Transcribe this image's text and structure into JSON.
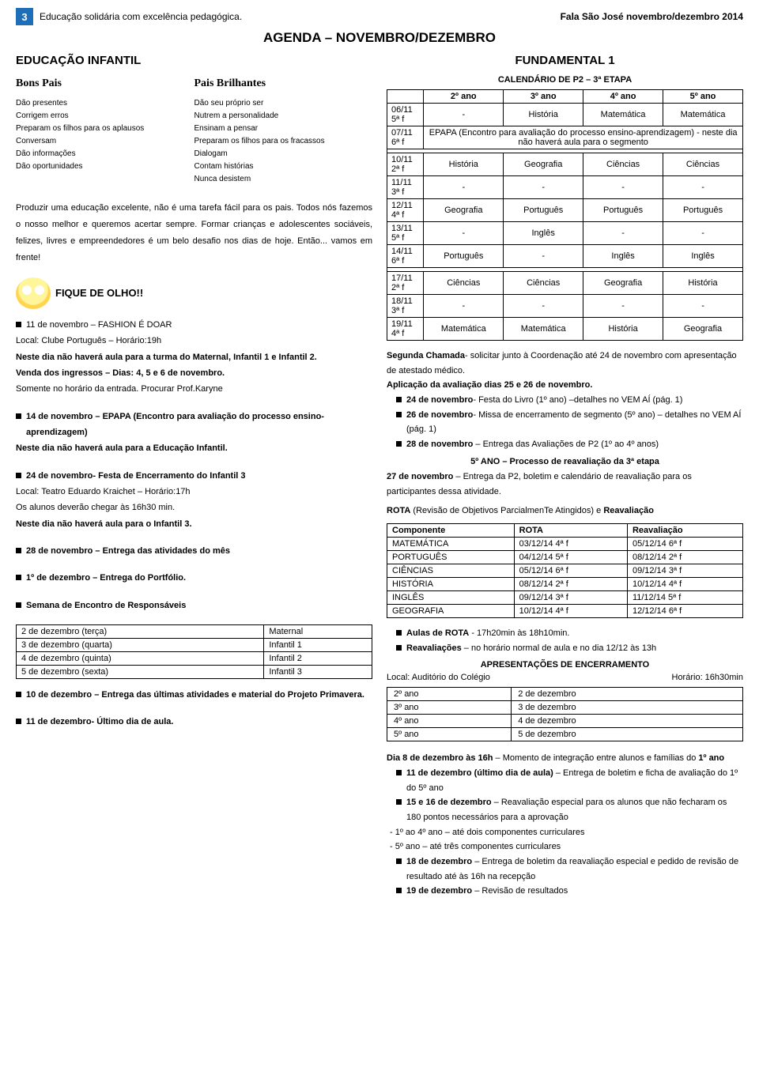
{
  "header": {
    "pageNum": "3",
    "left": "Educação solidária com excelência pedagógica.",
    "right": "Fala São José novembro/dezembro 2014",
    "agenda": "AGENDA – NOVEMBRO/DEZEMBRO"
  },
  "left": {
    "title": "EDUCAÇÃO INFANTIL",
    "compare": {
      "headA": "Bons Pais",
      "headB": "Pais Brilhantes",
      "a": [
        "Dão presentes",
        "Corrigem erros",
        "Preparam os filhos para os aplausos",
        "Conversam",
        "Dão informações",
        "Dão oportunidades"
      ],
      "b": [
        "Dão seu próprio ser",
        "Nutrem a personalidade",
        "Ensinam a pensar",
        "Preparam os filhos para os fracassos",
        "Dialogam",
        "Contam histórias",
        "Nunca desistem"
      ]
    },
    "body": "Produzir uma educação excelente, não é uma tarefa fácil para os pais. Todos nós fazemos o nosso melhor e queremos acertar sempre. Formar crianças e adolescentes sociáveis, felizes, livres e empreendedores é um belo desafio nos dias de hoje. Então... vamos em frente!",
    "fique": "FIQUE DE OLHO!!",
    "ev1": {
      "t": "11 de novembro – FASHION É DOAR",
      "l1": "Local: Clube Português – Horário:19h",
      "l2": "Neste dia não haverá aula para a turma do Maternal, Infantil 1 e Infantil 2.",
      "l3": "Venda dos ingressos – Dias: 4, 5 e 6 de novembro.",
      "l4": "Somente no horário da entrada. Procurar Prof.Karyne"
    },
    "ev2": {
      "t": "14 de novembro – EPAPA (Encontro para avaliação do processo ensino-aprendizagem)",
      "l1": "Neste dia não haverá aula para a Educação Infantil."
    },
    "ev3": {
      "t": "24 de novembro- Festa de Encerramento do Infantil 3",
      "l1": "Local: Teatro Eduardo Kraichet – Horário:17h",
      "l2": "Os alunos deverão chegar às 16h30 min.",
      "l3": "Neste dia não haverá aula para o Infantil 3."
    },
    "ev4": {
      "t": "28 de novembro – Entrega das atividades do mês"
    },
    "ev5": {
      "t": "1º de dezembro – Entrega do Portfólio."
    },
    "ev6": {
      "t": "Semana de Encontro de Responsáveis"
    },
    "resp": [
      [
        "2 de dezembro (terça)",
        "Maternal"
      ],
      [
        "3 de dezembro (quarta)",
        "Infantil 1"
      ],
      [
        "4 de dezembro (quinta)",
        "Infantil 2"
      ],
      [
        "5 de dezembro (sexta)",
        "Infantil 3"
      ]
    ],
    "ev7": {
      "t": "10 de dezembro – Entrega das últimas atividades e material do Projeto Primavera."
    },
    "ev8": {
      "t": "11 de dezembro- Último dia de aula."
    }
  },
  "right": {
    "title": "FUNDAMENTAL 1",
    "calTitle": "CALENDÁRIO DE P2 – 3ª ETAPA",
    "hdr": [
      "",
      "2º ano",
      "3º ano",
      "4º ano",
      "5º ano"
    ],
    "r1": [
      "06/11 5ª f",
      "-",
      "História",
      "Matemática",
      "Matemática"
    ],
    "r2a": "07/11 6ª f",
    "r2b": "EPAPA (Encontro para avaliação do processo ensino-aprendizagem) - neste dia não haverá aula para o segmento",
    "rows": [
      [
        "10/11 2ª f",
        "História",
        "Geografia",
        "Ciências",
        "Ciências"
      ],
      [
        "11/11 3ª f",
        "-",
        "-",
        "-",
        "-"
      ],
      [
        "12/11 4ª f",
        "Geografia",
        "Português",
        "Português",
        "Português"
      ],
      [
        "13/11 5ª f",
        "-",
        "Inglês",
        "-",
        "-"
      ],
      [
        "14/11 6ª f",
        "Português",
        "-",
        "Inglês",
        "Inglês"
      ]
    ],
    "rows2": [
      [
        "17/11 2ª f",
        "Ciências",
        "Ciências",
        "Geografia",
        "História"
      ],
      [
        "18/11 3ª f",
        "-",
        "-",
        "-",
        "-"
      ],
      [
        "19/11 4ª f",
        "Matemática",
        "Matemática",
        "História",
        "Geografia"
      ]
    ],
    "seg": {
      "a": "Segunda Chamada",
      "b": "- solicitar junto à Coordenação até 24 de novembro com apresentação de atestado médico.",
      "c": "Aplicação da avaliação dias 25 e 26 de novembro."
    },
    "n1": {
      "a": "24 de novembro",
      "b": "- Festa do Livro (1º ano) –detalhes no VEM AÍ (pág. 1)"
    },
    "n2": {
      "a": "26 de novembro",
      "b": "- Missa de encerramento de segmento (5º ano) – detalhes no VEM AÍ (pág. 1)"
    },
    "n3": {
      "a": "28 de novembro",
      "b": " – Entrega das Avaliações de P2 (1º ao 4º anos)"
    },
    "proc1": "5º ANO – Processo de reavaliação da 3ª etapa",
    "proc2a": "27 de novembro",
    "proc2b": " – Entrega da P2, boletim e calendário de reavaliação para os participantes dessa atividade.",
    "rota": {
      "a": "ROTA",
      "b": " (Revisão de Objetivos ParcialmenTe Atingidos) e ",
      "c": "Reavaliação"
    },
    "rotaHdr": [
      "Componente",
      "ROTA",
      "Reavaliação"
    ],
    "rotaRows": [
      [
        "MATEMÁTICA",
        "03/12/14  4ª f",
        "05/12/14  6ª f"
      ],
      [
        "PORTUGUÊS",
        "04/12/14  5ª f",
        "08/12/14  2ª f"
      ],
      [
        "CIÊNCIAS",
        "05/12/14  6ª f",
        "09/12/14  3ª f"
      ],
      [
        "HISTÓRIA",
        "08/12/14  2ª f",
        "10/12/14  4ª f"
      ],
      [
        "INGLÊS",
        "09/12/14  3ª f",
        "11/12/14  5ª f"
      ],
      [
        "GEOGRAFIA",
        "10/12/14  4ª f",
        "12/12/14  6ª f"
      ]
    ],
    "rotaN1": {
      "a": "Aulas de ROTA",
      "b": " - 17h20min às 18h10min."
    },
    "rotaN2": {
      "a": "Reavaliações",
      "b": " – no horário normal de aula e no dia 12/12 às 13h"
    },
    "apres": "APRESENTAÇÕES DE ENCERRAMENTO",
    "apresLoc": "Local: Auditório do Colégio",
    "apresHor": "Horário: 16h30min",
    "apresRows": [
      [
        "2º ano",
        "2 de dezembro"
      ],
      [
        "3º ano",
        "3 de dezembro"
      ],
      [
        "4º ano",
        "4 de dezembro"
      ],
      [
        "5º ano",
        "5 de dezembro"
      ]
    ],
    "dia8a": "Dia 8 de dezembro às 16h",
    "dia8b": " – Momento de integração entre alunos e famílias do ",
    "dia8c": "1º ano",
    "f1": {
      "a": "11 de dezembro (último dia de aula)",
      "b": " – Entrega de boletim e ficha de avaliação do 1º do 5º ano"
    },
    "f2": {
      "a": "15 e 16 de dezembro",
      "b": " – Reavaliação especial para os alunos que não fecharam os 180 pontos necessários para a aprovação"
    },
    "f3": "- 1º ao 4º ano – até dois componentes curriculares",
    "f4": "- 5º ano – até três componentes curriculares",
    "f5": {
      "a": "18 de dezembro",
      "b": " – Entrega de boletim da reavaliação especial e pedido de revisão de resultado até às 16h na recepção"
    },
    "f6": {
      "a": "19 de dezembro",
      "b": " – Revisão de resultados"
    }
  }
}
